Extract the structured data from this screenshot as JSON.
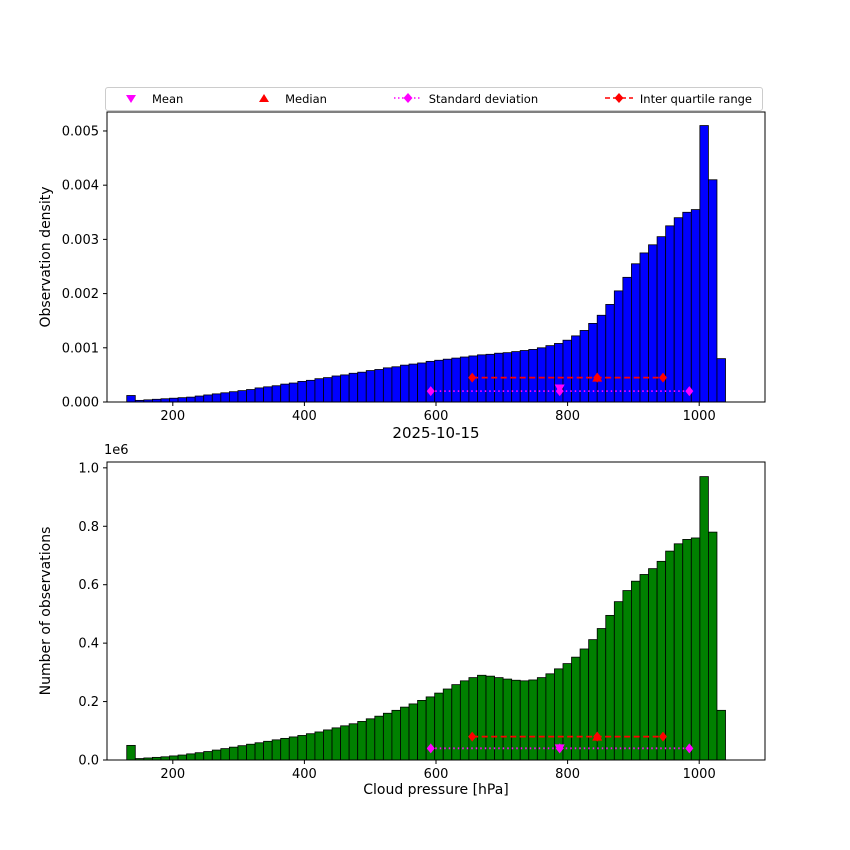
{
  "figure": {
    "title": "2025-10-15",
    "xlabel": "Cloud pressure [hPa]",
    "background": "#ffffff"
  },
  "colors": {
    "density_bar": "#0000ff",
    "counts_bar": "#008000",
    "mean_std": "#ff00ff",
    "median_iqr": "#ff0000",
    "bar_edge": "#000000"
  },
  "legend": {
    "items": [
      {
        "label": "Mean",
        "marker": "triangle-down",
        "color": "#ff00ff",
        "linestyle": "none"
      },
      {
        "label": "Median",
        "marker": "triangle-up",
        "color": "#ff0000",
        "linestyle": "none"
      },
      {
        "label": "Standard deviation",
        "marker": "diamond",
        "color": "#ff00ff",
        "linestyle": "dotted"
      },
      {
        "label": "Inter quartile range",
        "marker": "diamond",
        "color": "#ff0000",
        "linestyle": "dashed"
      }
    ]
  },
  "chart_data": [
    {
      "id": "observation-density-histogram",
      "type": "bar",
      "ylabel": "Observation density",
      "bar_color": "#0000ff",
      "bin_start": 130,
      "bin_width": 13,
      "xlim": [
        100,
        1100
      ],
      "ylim": [
        0,
        0.00535
      ],
      "xticks": [
        {
          "value": 200,
          "label": "200"
        },
        {
          "value": 400,
          "label": "400"
        },
        {
          "value": 600,
          "label": "600"
        },
        {
          "value": 800,
          "label": "800"
        },
        {
          "value": 1000,
          "label": "1000"
        }
      ],
      "yticks": [
        {
          "value": 0.0,
          "label": "0.000"
        },
        {
          "value": 0.001,
          "label": "0.001"
        },
        {
          "value": 0.002,
          "label": "0.002"
        },
        {
          "value": 0.003,
          "label": "0.003"
        },
        {
          "value": 0.004,
          "label": "0.004"
        },
        {
          "value": 0.005,
          "label": "0.005"
        }
      ],
      "values": [
        0.00012,
        3e-05,
        4e-05,
        5e-05,
        6e-05,
        7e-05,
        8e-05,
        9e-05,
        0.00011,
        0.00013,
        0.00015,
        0.00017,
        0.00019,
        0.00021,
        0.00023,
        0.00026,
        0.00028,
        0.0003,
        0.00033,
        0.00035,
        0.00038,
        0.0004,
        0.00043,
        0.00045,
        0.00048,
        0.0005,
        0.00053,
        0.00055,
        0.00058,
        0.0006,
        0.00063,
        0.00065,
        0.00068,
        0.0007,
        0.00072,
        0.00075,
        0.00077,
        0.00079,
        0.00081,
        0.00083,
        0.00085,
        0.00087,
        0.00088,
        0.0009,
        0.00091,
        0.00093,
        0.00095,
        0.00097,
        0.001,
        0.00104,
        0.00108,
        0.00114,
        0.00122,
        0.00132,
        0.00145,
        0.0016,
        0.0018,
        0.00205,
        0.0023,
        0.00255,
        0.00275,
        0.0029,
        0.00305,
        0.00325,
        0.0034,
        0.0035,
        0.00355,
        0.0051,
        0.0041,
        0.0008
      ],
      "stats_overlay": {
        "mean": {
          "x": 788,
          "y": 0.00025
        },
        "median": {
          "x": 845,
          "y": 0.00045
        },
        "std_range": {
          "x1": 592,
          "x2": 985,
          "y": 0.0002
        },
        "iqr_range": {
          "x1": 655,
          "x2": 945,
          "y": 0.00045
        }
      }
    },
    {
      "id": "observation-count-histogram",
      "type": "bar",
      "ylabel": "Number of observations",
      "offset_label": "1e6",
      "bar_color": "#008000",
      "bin_start": 130,
      "bin_width": 13,
      "xlim": [
        100,
        1100
      ],
      "ylim": [
        0,
        1020000
      ],
      "xticks": [
        {
          "value": 200,
          "label": "200"
        },
        {
          "value": 400,
          "label": "400"
        },
        {
          "value": 600,
          "label": "600"
        },
        {
          "value": 800,
          "label": "800"
        },
        {
          "value": 1000,
          "label": "1000"
        }
      ],
      "yticks": [
        {
          "value": 0,
          "label": "0.0"
        },
        {
          "value": 200000,
          "label": "0.2"
        },
        {
          "value": 400000,
          "label": "0.4"
        },
        {
          "value": 600000,
          "label": "0.6"
        },
        {
          "value": 800000,
          "label": "0.8"
        },
        {
          "value": 1000000,
          "label": "1.0"
        }
      ],
      "values": [
        50000,
        5000,
        7000,
        9000,
        11000,
        14000,
        17000,
        21000,
        25000,
        29000,
        34000,
        39000,
        44000,
        49000,
        54000,
        59000,
        64000,
        69000,
        74000,
        79000,
        84000,
        90000,
        96000,
        103000,
        110000,
        117000,
        124000,
        132000,
        141000,
        150000,
        160000,
        170000,
        181000,
        192000,
        204000,
        216000,
        229000,
        243000,
        258000,
        271000,
        282000,
        290000,
        287000,
        282000,
        277000,
        273000,
        271000,
        274000,
        282000,
        295000,
        312000,
        330000,
        352000,
        380000,
        412000,
        450000,
        495000,
        542000,
        580000,
        612000,
        635000,
        655000,
        680000,
        715000,
        740000,
        755000,
        760000,
        970000,
        780000,
        170000
      ],
      "stats_overlay": {
        "mean": {
          "x": 788,
          "y": 40000
        },
        "median": {
          "x": 845,
          "y": 80000
        },
        "std_range": {
          "x1": 592,
          "x2": 985,
          "y": 40000
        },
        "iqr_range": {
          "x1": 655,
          "x2": 945,
          "y": 80000
        }
      }
    }
  ]
}
